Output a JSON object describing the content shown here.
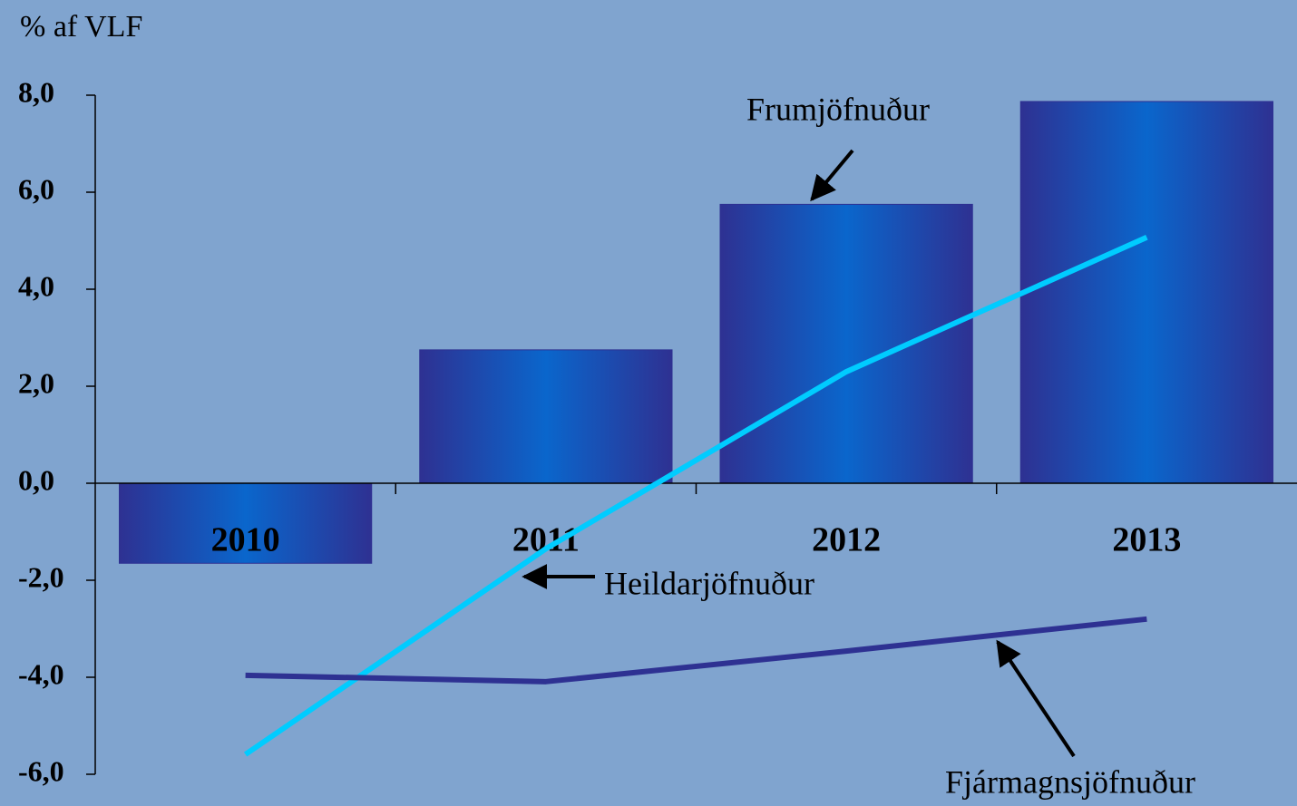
{
  "chart_data": {
    "type": "bar_line",
    "ylabel": "% af VLF",
    "categories": [
      "2010",
      "2011",
      "2012",
      "2013"
    ],
    "series": [
      {
        "name": "Frumjöfnuður",
        "type": "bar",
        "color": "#2e3192",
        "values": [
          -1.65,
          2.75,
          5.75,
          7.87
        ]
      },
      {
        "name": "Heildarjöfnuður",
        "type": "line",
        "color": "#00ccff",
        "values": [
          -5.59,
          -1.35,
          2.3,
          5.07
        ]
      },
      {
        "name": "Fjármagnsjöfnuður",
        "type": "line",
        "color": "#2e3192",
        "values": [
          -3.96,
          -4.09,
          -3.46,
          -2.8
        ]
      }
    ],
    "ylim": [
      -6,
      8
    ],
    "yticks": [
      {
        "value": -6,
        "label": "-6,0"
      },
      {
        "value": -4,
        "label": "-4,0"
      },
      {
        "value": -2,
        "label": "-2,0"
      },
      {
        "value": 0,
        "label": "0,0"
      },
      {
        "value": 2,
        "label": "2,0"
      },
      {
        "value": 4,
        "label": "4,0"
      },
      {
        "value": 6,
        "label": "6,0"
      },
      {
        "value": 8,
        "label": "8,0"
      }
    ]
  }
}
